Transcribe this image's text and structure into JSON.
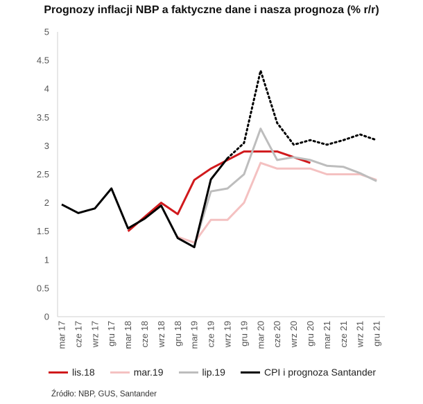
{
  "title": "Prognozy inflacji NBP a faktyczne dane i nasza prognoza (% r/r)",
  "source": "Źródło: NBP, GUS, Santander",
  "chart_data": {
    "type": "line",
    "title": "Prognozy inflacji NBP a faktyczne dane i nasza prognoza (% r/r)",
    "ylim": [
      0,
      5
    ],
    "yticks": [
      "0",
      "0.5",
      "1",
      "1.5",
      "2",
      "2.5",
      "3",
      "3.5",
      "4",
      "4.5",
      "5"
    ],
    "categories": [
      "mar 17",
      "cze 17",
      "wrz 17",
      "gru 17",
      "mar 18",
      "cze 18",
      "wrz 18",
      "gru 18",
      "mar 19",
      "cze 19",
      "wrz 19",
      "gru 19",
      "mar 20",
      "cze 20",
      "wrz 20",
      "gru 20",
      "mar 21",
      "cze 21",
      "wrz 21",
      "gru 21"
    ],
    "grid": false,
    "legend_position": "bottom",
    "series": [
      {
        "name": "lis.18",
        "color": "#d0191c",
        "dash": "solid",
        "values": [
          null,
          null,
          null,
          null,
          1.5,
          1.75,
          2.0,
          1.8,
          2.4,
          2.6,
          2.75,
          2.9,
          2.9,
          2.9,
          2.8,
          2.7,
          null,
          null,
          null,
          null
        ]
      },
      {
        "name": "mar.19",
        "color": "#f4c1c1",
        "dash": "solid",
        "values": [
          null,
          null,
          null,
          null,
          null,
          null,
          null,
          1.4,
          1.3,
          1.7,
          1.7,
          2.0,
          2.7,
          2.6,
          2.6,
          2.6,
          2.5,
          2.5,
          2.5,
          2.4
        ]
      },
      {
        "name": "lip.19",
        "color": "#bdbdbd",
        "dash": "solid",
        "values": [
          null,
          null,
          null,
          null,
          null,
          null,
          null,
          null,
          1.25,
          2.2,
          2.25,
          2.5,
          3.3,
          2.75,
          2.8,
          2.75,
          2.65,
          2.63,
          2.52,
          2.38
        ]
      },
      {
        "name": "CPI i prognoza Santander",
        "color": "#000000",
        "dash": "solid",
        "values": [
          1.97,
          1.82,
          1.9,
          2.25,
          1.55,
          1.72,
          1.95,
          1.38,
          1.22,
          2.41,
          2.78,
          null,
          null,
          null,
          null,
          null,
          null,
          null,
          null,
          null
        ]
      },
      {
        "name": "CPI i prognoza Santander",
        "color": "#000000",
        "dash": "dotted",
        "show_in_legend": false,
        "values": [
          null,
          null,
          null,
          null,
          null,
          null,
          null,
          null,
          null,
          null,
          2.78,
          3.05,
          4.32,
          3.4,
          3.02,
          3.1,
          3.02,
          3.1,
          3.2,
          3.1
        ]
      }
    ]
  }
}
